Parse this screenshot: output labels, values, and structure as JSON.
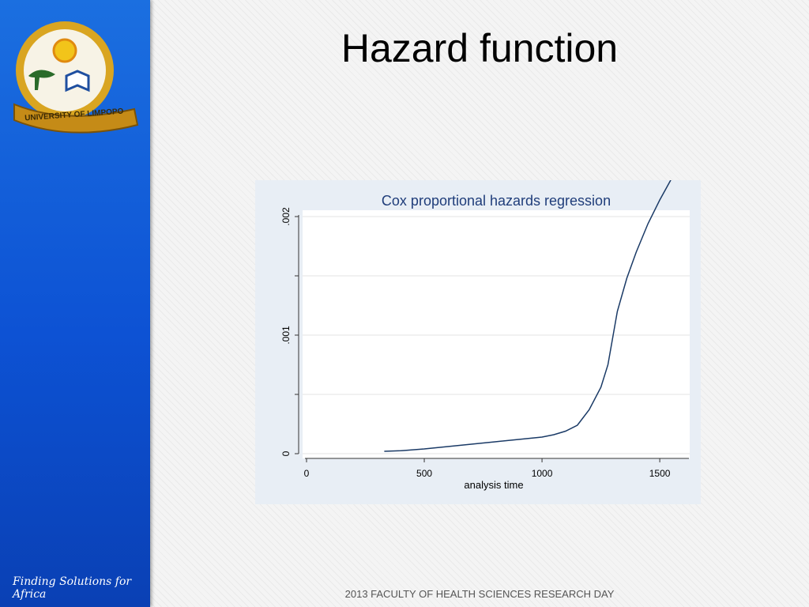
{
  "slide": {
    "title": "Hazard function",
    "tagline": "Finding Solutions for Africa",
    "footer": "2013 FACULTY OF HEALTH SCIENCES RESEARCH DAY",
    "logo_text": "UNIVERSITY OF LIMPOPO"
  },
  "colors": {
    "sidebar": "#0d52d4",
    "line": "#1a3a66",
    "chart_title": "#1f3d7a",
    "plot_bg": "#ffffff",
    "panel_bg": "#e8eef5"
  },
  "chart_data": {
    "type": "line",
    "title": "Cox proportional hazards regression",
    "xlabel": "analysis time",
    "ylabel": "",
    "xlim": [
      0,
      1550
    ],
    "ylim": [
      0,
      0.002
    ],
    "xticks": [
      0,
      500,
      1000,
      1500
    ],
    "xtick_labels": [
      "0",
      "500",
      "1000",
      "1500"
    ],
    "yticks": [
      0,
      0.001,
      0.002
    ],
    "ytick_labels": [
      "0",
      ".001",
      ".002"
    ],
    "yticks_minor": [
      0.0005,
      0.0015
    ],
    "grid": true,
    "legend": "none",
    "series": [
      {
        "x": [
          330,
          400,
          500,
          600,
          700,
          800,
          900,
          1000,
          1050,
          1100,
          1150,
          1200,
          1250,
          1280,
          1320,
          1360,
          1400,
          1450,
          1500,
          1550
        ],
        "y": [
          2e-05,
          2.5e-05,
          4e-05,
          6e-05,
          8e-05,
          0.0001,
          0.00012,
          0.00014,
          0.00016,
          0.00019,
          0.00024,
          0.00037,
          0.00056,
          0.00075,
          0.0012,
          0.00148,
          0.0017,
          0.00194,
          0.00214,
          0.00232
        ]
      }
    ]
  }
}
